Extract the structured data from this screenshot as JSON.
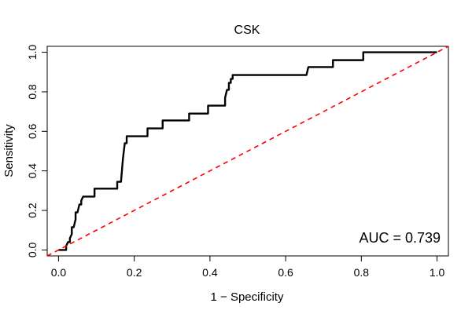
{
  "chart_data": {
    "type": "line",
    "title": "CSK",
    "xlabel": "1 − Specificity",
    "ylabel": "Sensitivity",
    "xlim": [
      -0.03,
      1.03
    ],
    "ylim": [
      -0.03,
      1.03
    ],
    "x_ticks": [
      0.0,
      0.2,
      0.4,
      0.6,
      0.8,
      1.0
    ],
    "x_tick_labels": [
      "0.0",
      "0.2",
      "0.4",
      "0.6",
      "0.8",
      "1.0"
    ],
    "y_ticks": [
      0.0,
      0.2,
      0.4,
      0.6,
      0.8,
      1.0
    ],
    "y_tick_labels": [
      "0.0",
      "0.2",
      "0.4",
      "0.6",
      "0.8",
      "1.0"
    ],
    "grid": false,
    "annotations": [
      {
        "text": "AUC = 0.739",
        "position": "bottom-right"
      }
    ],
    "series": [
      {
        "style": "solid",
        "color": "#000000",
        "points": [
          [
            0.0,
            0.0
          ],
          [
            0.02,
            0.0
          ],
          [
            0.02,
            0.02
          ],
          [
            0.025,
            0.04
          ],
          [
            0.03,
            0.04
          ],
          [
            0.03,
            0.06
          ],
          [
            0.035,
            0.08
          ],
          [
            0.035,
            0.115
          ],
          [
            0.04,
            0.115
          ],
          [
            0.045,
            0.155
          ],
          [
            0.045,
            0.19
          ],
          [
            0.05,
            0.19
          ],
          [
            0.055,
            0.23
          ],
          [
            0.06,
            0.23
          ],
          [
            0.06,
            0.25
          ],
          [
            0.065,
            0.27
          ],
          [
            0.095,
            0.27
          ],
          [
            0.095,
            0.31
          ],
          [
            0.155,
            0.31
          ],
          [
            0.155,
            0.345
          ],
          [
            0.165,
            0.345
          ],
          [
            0.17,
            0.46
          ],
          [
            0.175,
            0.54
          ],
          [
            0.18,
            0.54
          ],
          [
            0.18,
            0.575
          ],
          [
            0.235,
            0.575
          ],
          [
            0.235,
            0.615
          ],
          [
            0.275,
            0.615
          ],
          [
            0.275,
            0.655
          ],
          [
            0.345,
            0.655
          ],
          [
            0.345,
            0.69
          ],
          [
            0.395,
            0.69
          ],
          [
            0.395,
            0.73
          ],
          [
            0.44,
            0.73
          ],
          [
            0.44,
            0.77
          ],
          [
            0.445,
            0.81
          ],
          [
            0.45,
            0.81
          ],
          [
            0.45,
            0.845
          ],
          [
            0.455,
            0.845
          ],
          [
            0.455,
            0.865
          ],
          [
            0.46,
            0.865
          ],
          [
            0.46,
            0.885
          ],
          [
            0.655,
            0.885
          ],
          [
            0.66,
            0.925
          ],
          [
            0.725,
            0.925
          ],
          [
            0.725,
            0.96
          ],
          [
            0.805,
            0.96
          ],
          [
            0.805,
            1.0
          ],
          [
            1.0,
            1.0
          ]
        ]
      },
      {
        "style": "dashed",
        "color": "#ff0000",
        "points": [
          [
            -0.03,
            -0.03
          ],
          [
            1.03,
            1.03
          ]
        ]
      }
    ]
  }
}
